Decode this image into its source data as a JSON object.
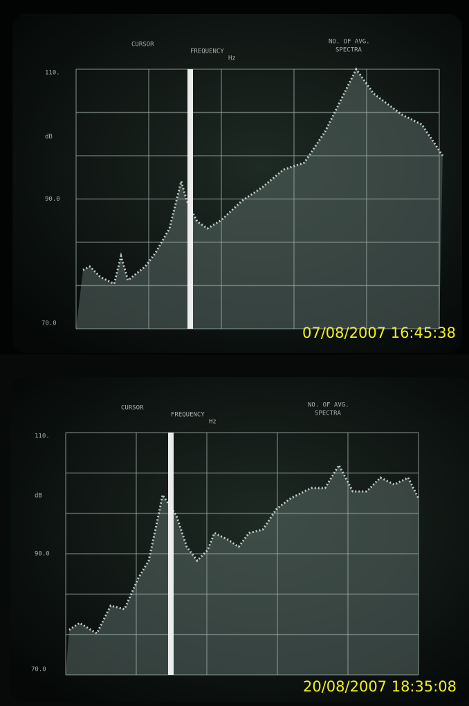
{
  "panels": [
    {
      "cursor": "CURSOR",
      "frequency": "FREQUENCY",
      "unit_hz": "Hz",
      "avg": "NO. OF AVG.",
      "spectra": "SPECTRA",
      "y_top": "110.",
      "y_unit": "dB",
      "y_mid": "90.0",
      "y_bottom": "70.0",
      "timestamp": "07/08/2007  16:45:38"
    },
    {
      "cursor": "CURSOR",
      "frequency": "FREQUENCY",
      "unit_hz": "Hz",
      "avg": "NO. OF AVG.",
      "spectra": "SPECTRA",
      "y_top": "110.",
      "y_unit": "dB",
      "y_mid": "90.0",
      "y_bottom": "70.0",
      "timestamp": "20/08/2007  18:35:08"
    }
  ]
}
